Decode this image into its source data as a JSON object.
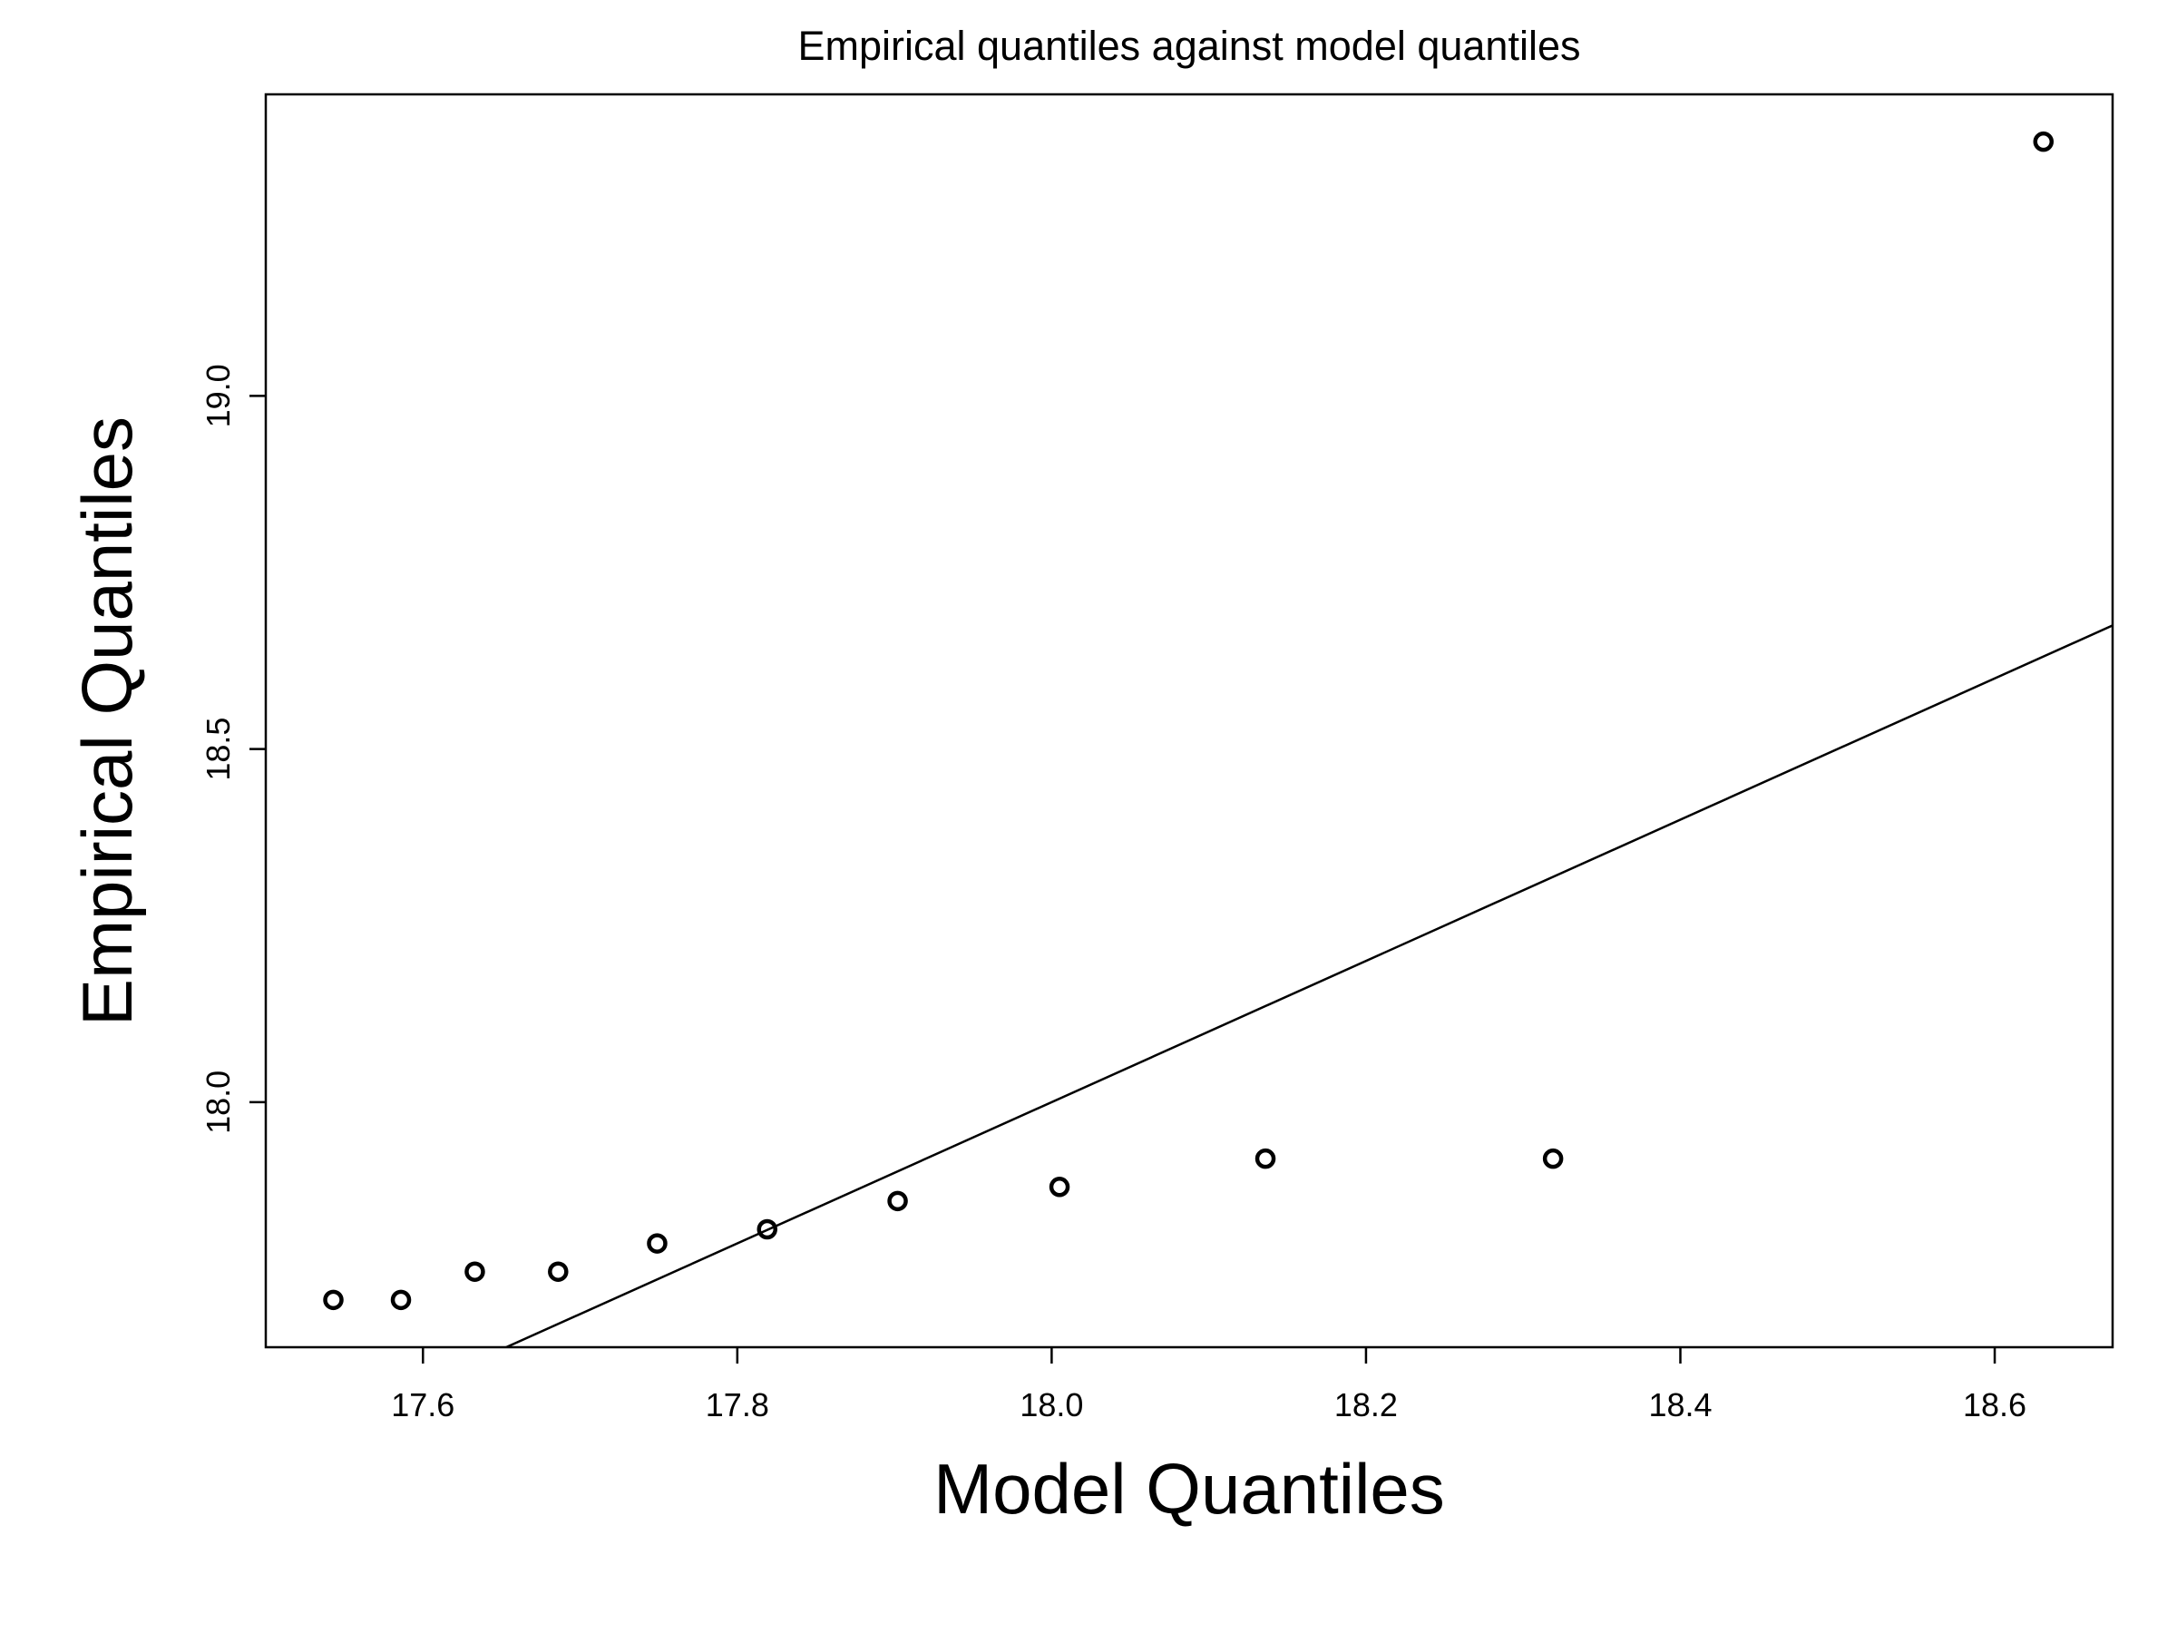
{
  "chart_data": {
    "type": "scatter",
    "title": "Empirical quantiles against model quantiles",
    "xlabel": "Model Quantiles",
    "ylabel": "Empirical Quantiles",
    "xlim": [
      17.5,
      18.675
    ],
    "ylim": [
      17.653,
      19.427
    ],
    "x_ticks": [
      17.6,
      17.8,
      18.0,
      18.2,
      18.4,
      18.6
    ],
    "x_tick_labels": [
      "17.6",
      "17.8",
      "18.0",
      "18.2",
      "18.4",
      "18.6"
    ],
    "y_ticks": [
      18.0,
      18.5,
      19.0
    ],
    "y_tick_labels": [
      "18.0",
      "18.5",
      "19.0"
    ],
    "grid": false,
    "points": [
      {
        "x": 17.543,
        "y": 17.72
      },
      {
        "x": 17.586,
        "y": 17.72
      },
      {
        "x": 17.633,
        "y": 17.76
      },
      {
        "x": 17.686,
        "y": 17.76
      },
      {
        "x": 17.749,
        "y": 17.8
      },
      {
        "x": 17.819,
        "y": 17.82
      },
      {
        "x": 17.902,
        "y": 17.86
      },
      {
        "x": 18.005,
        "y": 17.88
      },
      {
        "x": 18.136,
        "y": 17.92
      },
      {
        "x": 18.319,
        "y": 17.92
      },
      {
        "x": 18.631,
        "y": 19.36
      }
    ],
    "reference_line": {
      "intercept": 0,
      "slope": 1
    }
  }
}
